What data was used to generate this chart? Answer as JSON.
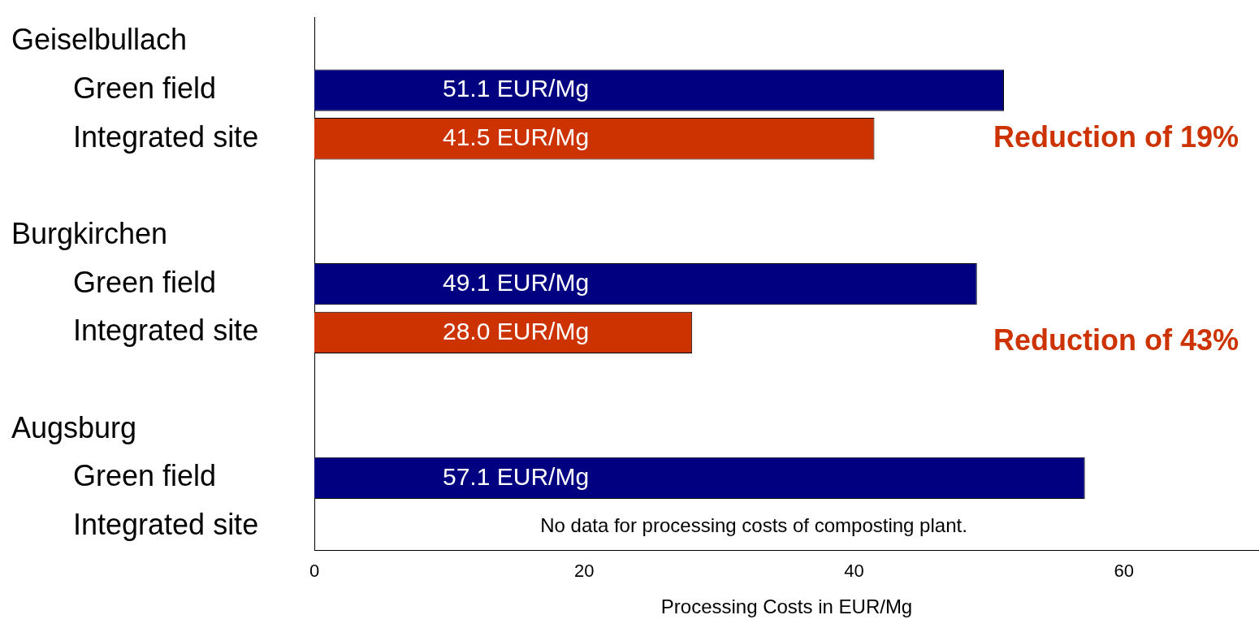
{
  "chart_data": {
    "type": "bar",
    "orientation": "horizontal",
    "xlabel": "Processing Costs in EUR/Mg",
    "categories": [
      null,
      "Green field",
      "Integrated site",
      null,
      null,
      "Green field",
      "Integrated site",
      null,
      null,
      "Green field",
      "Integrated site"
    ],
    "values": [
      null,
      51.1,
      41.5,
      null,
      null,
      49.1,
      28.0,
      null,
      null,
      57.1,
      null
    ],
    "colors": [
      "#000080",
      "#000080",
      "#cc3300",
      "#000080",
      "#000080",
      "#000080",
      "#cc3300",
      "#000080",
      "#000080",
      "#000080",
      "#cc3300"
    ],
    "value_labels": [
      null,
      "51.1 EUR/Mg",
      "41.5 EUR/Mg",
      null,
      null,
      "49.1 EUR/Mg",
      "28.0 EUR/Mg",
      null,
      null,
      "57.1 EUR/Mg",
      null
    ],
    "xlim": [
      0,
      70
    ],
    "xticks": [
      0,
      20,
      40,
      60
    ],
    "grid": false,
    "legend": false,
    "annotations": [
      "Geiselbullach",
      "Reduction of 19%",
      "Burgkirchen",
      "Reduction of 43%",
      "Augsburg",
      "No data for processing costs of composting plant."
    ]
  }
}
